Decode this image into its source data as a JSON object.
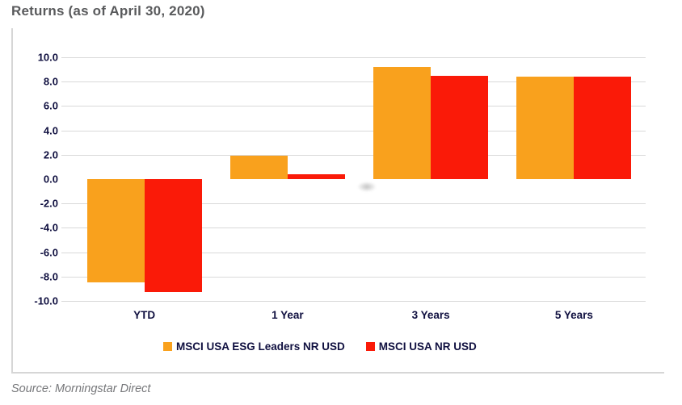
{
  "page": {
    "source_note": "Source: Morningstar Direct"
  },
  "chart_data": {
    "type": "bar",
    "title": "Returns (as of April 30, 2020)",
    "categories": [
      "YTD",
      "1 Year",
      "3 Years",
      "5 Years"
    ],
    "series": [
      {
        "name": "MSCI USA ESG Leaders NR USD",
        "color": "#F9A11D",
        "values": [
          -8.5,
          1.9,
          9.2,
          8.4
        ]
      },
      {
        "name": "MSCI USA NR USD",
        "color": "#FA1A08",
        "values": [
          -9.3,
          0.4,
          8.5,
          8.4
        ]
      }
    ],
    "ylim": [
      -10,
      10
    ],
    "ytick_step": 2,
    "yticks": [
      10.0,
      8.0,
      6.0,
      4.0,
      2.0,
      0.0,
      -2.0,
      -4.0,
      -6.0,
      -8.0,
      -10.0
    ],
    "ytick_format_decimals": 1,
    "zero_gridline": false,
    "grid": true,
    "legend_position": "bottom",
    "xlabel": "",
    "ylabel": ""
  },
  "colors": {
    "title_text": "#595a5c",
    "axis_text": "#101040",
    "gridline": "#d9d9d9",
    "box_border": "#d6d6d6",
    "source_text": "#76777a"
  }
}
